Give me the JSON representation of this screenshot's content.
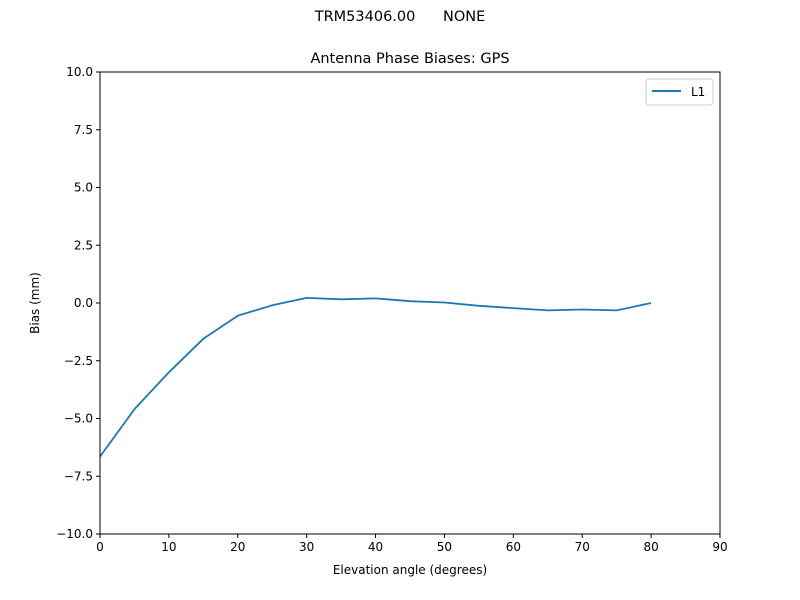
{
  "figure": {
    "suptitle": "TRM53406.00      NONE"
  },
  "chart_data": {
    "type": "line",
    "title": "Antenna Phase Biases: GPS",
    "xlabel": "Elevation angle (degrees)",
    "ylabel": "Bias (mm)",
    "xlim": [
      0,
      90
    ],
    "ylim": [
      -10,
      10
    ],
    "xticks": [
      0,
      10,
      20,
      30,
      40,
      50,
      60,
      70,
      80,
      90
    ],
    "yticks": [
      -10.0,
      -7.5,
      -5.0,
      -2.5,
      0.0,
      2.5,
      5.0,
      7.5,
      10.0
    ],
    "ytick_labels": [
      "−10.0",
      "−7.5",
      "−5.0",
      "−2.5",
      "0.0",
      "2.5",
      "5.0",
      "7.5",
      "10.0"
    ],
    "grid": false,
    "legend_position": "upper right",
    "series": [
      {
        "name": "L1",
        "color": "#1f77b4",
        "x": [
          0,
          5,
          10,
          15,
          20,
          25,
          30,
          35,
          40,
          45,
          50,
          55,
          60,
          65,
          70,
          75,
          80
        ],
        "values": [
          -6.65,
          -4.6,
          -3.0,
          -1.55,
          -0.55,
          -0.1,
          0.22,
          0.16,
          0.2,
          0.08,
          0.02,
          -0.12,
          -0.22,
          -0.32,
          -0.28,
          -0.32,
          0.0
        ]
      }
    ]
  }
}
